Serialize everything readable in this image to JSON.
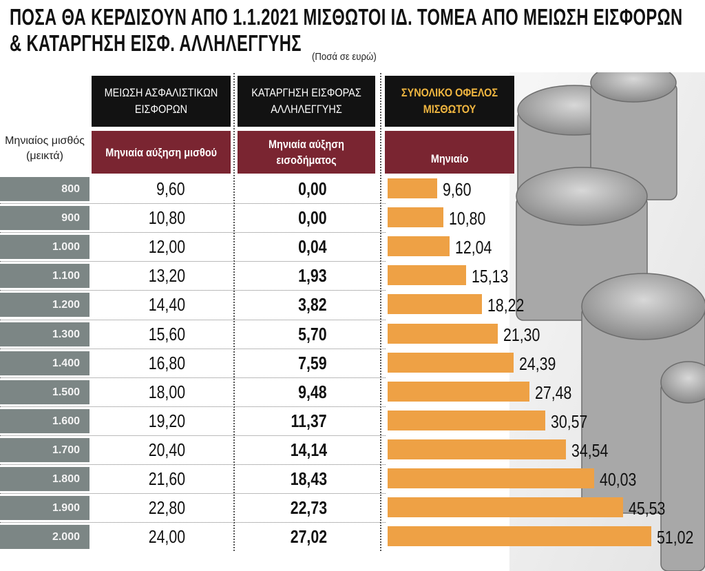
{
  "title_line1": "ΠΟΣΑ ΘΑ ΚΕΡΔΙΣΟΥΝ ΑΠΟ 1.1.2021 ΜΙΣΘΩΤΟΙ ΙΔ. ΤΟΜΕΑ ΑΠΟ ΜΕΙΩΣΗ ΕΙΣΦΟΡΩΝ",
  "title_line2": "& ΚΑΤΑΡΓΗΣΗ ΕΙΣΦ. ΑΛΛΗΛΕΓΓΥΗΣ",
  "units_note": "(Ποσά σε ευρώ)",
  "row_header": "Μηνιαίος μισθός (μεικτά)",
  "columns": [
    {
      "group": "ΜΕΙΩΣΗ ΑΣΦΑΛΙΣΤΙΚΩΝ ΕΙΣΦΟΡΩΝ",
      "sub": "Μηνιαία αύξηση μισθού"
    },
    {
      "group": "ΚΑΤΑΡΓΗΣΗ ΕΙΣΦΟΡΑΣ ΑΛΛΗΛΕΓΓΥΗΣ",
      "sub": "Μηνιαία αύξηση εισοδήματος"
    },
    {
      "group": "ΣΥΝΟΛΙΚΟ ΟΦΕΛΟΣ ΜΙΣΘΩΤΟΥ",
      "sub": "Μηνιαίο"
    }
  ],
  "colors": {
    "header_black": "#121212",
    "header_red": "#7a2531",
    "accent_gold": "#f0b640",
    "bar": "#eea145",
    "salary_bg": "#7c8685"
  },
  "chart_data": {
    "type": "table",
    "bar_column": "Μηνιαίο",
    "rows": [
      {
        "salary": "800",
        "contrib": "9,60",
        "solidarity": "0,00",
        "total": "9,60",
        "total_value": 9.6
      },
      {
        "salary": "900",
        "contrib": "10,80",
        "solidarity": "0,00",
        "total": "10,80",
        "total_value": 10.8
      },
      {
        "salary": "1.000",
        "contrib": "12,00",
        "solidarity": "0,04",
        "total": "12,04",
        "total_value": 12.04
      },
      {
        "salary": "1.100",
        "contrib": "13,20",
        "solidarity": "1,93",
        "total": "15,13",
        "total_value": 15.13
      },
      {
        "salary": "1.200",
        "contrib": "14,40",
        "solidarity": "3,82",
        "total": "18,22",
        "total_value": 18.22
      },
      {
        "salary": "1.300",
        "contrib": "15,60",
        "solidarity": "5,70",
        "total": "21,30",
        "total_value": 21.3
      },
      {
        "salary": "1.400",
        "contrib": "16,80",
        "solidarity": "7,59",
        "total": "24,39",
        "total_value": 24.39
      },
      {
        "salary": "1.500",
        "contrib": "18,00",
        "solidarity": "9,48",
        "total": "27,48",
        "total_value": 27.48
      },
      {
        "salary": "1.600",
        "contrib": "19,20",
        "solidarity": "11,37",
        "total": "30,57",
        "total_value": 30.57
      },
      {
        "salary": "1.700",
        "contrib": "20,40",
        "solidarity": "14,14",
        "total": "34,54",
        "total_value": 34.54
      },
      {
        "salary": "1.800",
        "contrib": "21,60",
        "solidarity": "18,43",
        "total": "40,03",
        "total_value": 40.03
      },
      {
        "salary": "1.900",
        "contrib": "22,80",
        "solidarity": "22,73",
        "total": "45,53",
        "total_value": 45.53
      },
      {
        "salary": "2.000",
        "contrib": "24,00",
        "solidarity": "27,02",
        "total": "51,02",
        "total_value": 51.02
      }
    ]
  }
}
